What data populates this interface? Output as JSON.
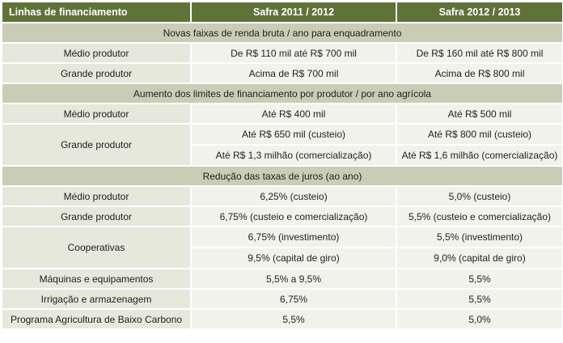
{
  "header": {
    "col1": "Linhas de financiamento",
    "col2": "Safra 2011 / 2012",
    "col3": "Safra 2012 / 2013"
  },
  "sections": [
    {
      "title": "Novas faixas de renda bruta / ano para enquadramento",
      "rows": [
        {
          "label": "Médio produtor",
          "v2011": "De R$ 110 mil até R$ 700 mil",
          "v2012": "De R$ 160 mil até R$ 800 mil"
        },
        {
          "label": "Grande produtor",
          "v2011": "Acima de R$ 700 mil",
          "v2012": "Acima de R$ 800 mil"
        }
      ]
    },
    {
      "title": "Aumento dos limites de financiamento por produtor / por ano agrícola",
      "rows": [
        {
          "label": "Médio produtor",
          "v2011": "Até R$ 400 mil",
          "v2012": "Até R$ 500 mil"
        },
        {
          "label": "Grande produtor",
          "sub": [
            {
              "v2011": "Até R$ 650 mil (custeio)",
              "v2012": "Até R$ 800 mil (custeio)"
            },
            {
              "v2011": "Até R$ 1,3 milhão (comercialização)",
              "v2012": "Até R$ 1,6 milhão (comercialização)"
            }
          ]
        }
      ]
    },
    {
      "title": "Redução das taxas de juros (ao ano)",
      "rows": [
        {
          "label": "Médio produtor",
          "v2011": "6,25% (custeio)",
          "v2012": "5,0% (custeio)"
        },
        {
          "label": "Grande produtor",
          "v2011": "6,75% (custeio e comercialização)",
          "v2012": "5,5% (custeio e comercialização)"
        },
        {
          "label": "Cooperativas",
          "sub": [
            {
              "v2011": "6,75% (investimento)",
              "v2012": "5,5%  (investimento)"
            },
            {
              "v2011": "9,5% (capital de giro)",
              "v2012": "9,0% (capital de giro)"
            }
          ]
        },
        {
          "label": "Máquinas e equipamentos",
          "v2011": "5,5% a 9,5%",
          "v2012": "5,5%"
        },
        {
          "label": "Irrigação e armazenagem",
          "v2011": "6,75%",
          "v2012": "5,5%"
        },
        {
          "label": "Programa Agricultura de Baixo Carbono",
          "v2011": "5,5%",
          "v2012": "5,0%"
        }
      ]
    }
  ]
}
